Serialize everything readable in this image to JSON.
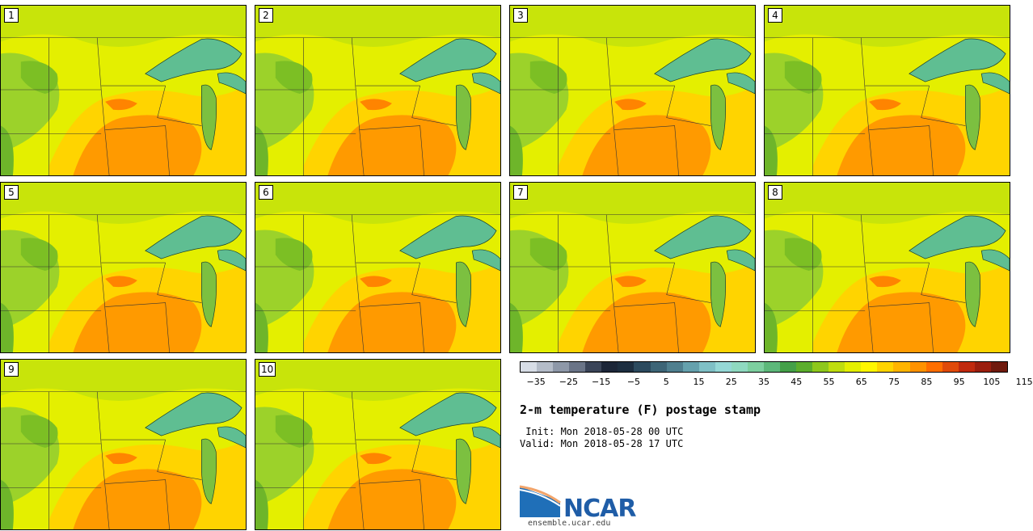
{
  "panels": [
    {
      "label": "1"
    },
    {
      "label": "2"
    },
    {
      "label": "3"
    },
    {
      "label": "4"
    },
    {
      "label": "5"
    },
    {
      "label": "6"
    },
    {
      "label": "7"
    },
    {
      "label": "8"
    },
    {
      "label": "9"
    },
    {
      "label": "10"
    }
  ],
  "colorbar": {
    "colors": [
      "#d7dde6",
      "#b4bcc8",
      "#8e98a8",
      "#6a7487",
      "#3a4458",
      "#1c2638",
      "#1d2e40",
      "#2c4a5e",
      "#3d6577",
      "#4f7f8f",
      "#65a1ad",
      "#7fc0c6",
      "#95d8d6",
      "#8fd9c0",
      "#7dcf9f",
      "#5db87a",
      "#44a048",
      "#5cae2c",
      "#8ec81c",
      "#bfdd0f",
      "#e4ef00",
      "#fff600",
      "#ffd400",
      "#ffb400",
      "#ff9200",
      "#ff6e00",
      "#e04a0a",
      "#c12a0e",
      "#9b1e0e",
      "#701a0e"
    ],
    "tick_labels": [
      "−35",
      "−25",
      "−15",
      "−5",
      "5",
      "15",
      "25",
      "35",
      "45",
      "55",
      "65",
      "75",
      "85",
      "95",
      "105",
      "115"
    ]
  },
  "title": "2-m temperature (F) postage stamp",
  "init": " Init: Mon 2018-05-28 00 UTC",
  "valid": "Valid: Mon 2018-05-28 17 UTC",
  "logo": {
    "text": "NCAR",
    "site": "ensemble.ucar.edu"
  },
  "colors": {
    "lake": "#5fbe92",
    "cool": "#9cd22a",
    "mild": "#e4ef00",
    "warm": "#ffd400",
    "hot": "#ff9a00"
  }
}
